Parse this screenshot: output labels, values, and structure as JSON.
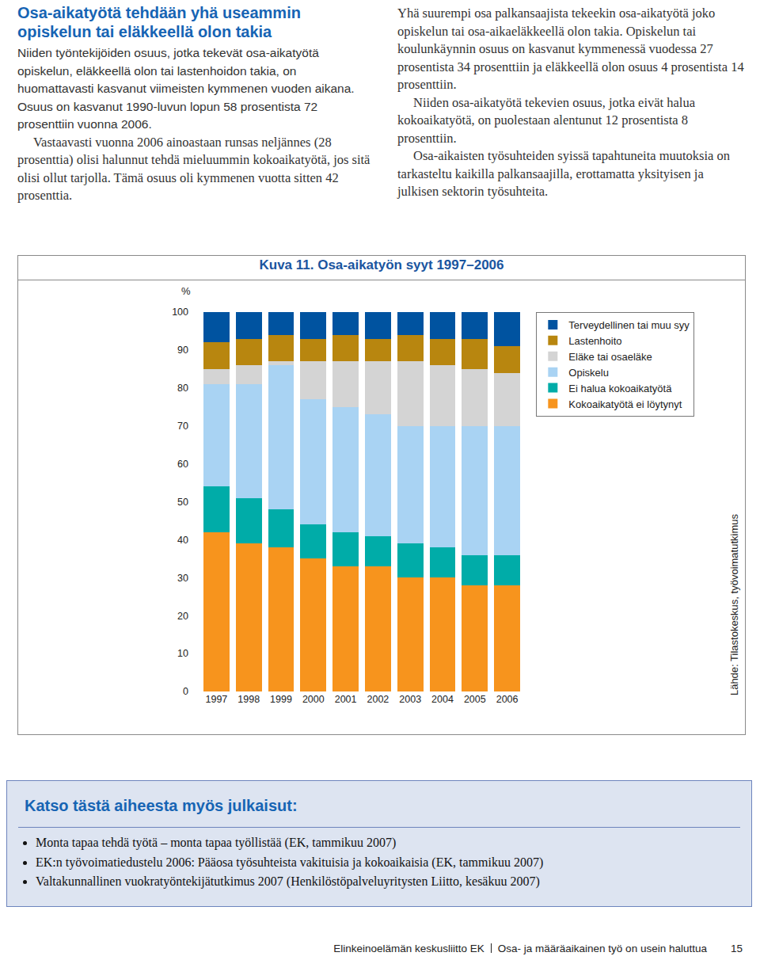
{
  "header": {
    "title": "Osa-aikatyötä tehdään yhä useammin opiskelun tai eläkkeellä olon takia",
    "left": [
      "Niiden työntekijöiden osuus, jotka tekevät osa-aikatyötä opiskelun, eläkkeellä olon tai lastenhoidon takia, on huomattavasti kasvanut viimeisten kymmenen vuoden aikana. Osuus on kasvanut 1990-luvun lopun 58 prosentista 72 prosenttiin vuonna 2006.",
      "Vastaavasti vuonna 2006 ainoastaan runsas neljännes (28 prosenttia) olisi halunnut tehdä mieluummin kokoaikatyötä, jos sitä olisi ollut tarjolla. Tämä osuus oli kymmenen vuotta sitten 42 prosenttia."
    ],
    "right": [
      "Yhä suurempi osa palkansaajista tekeekin osa-aikatyötä joko opiskelun tai osa-aikaeläkkeellä olon takia. Opiskelun tai koulunkäynnin osuus on kasvanut kymmenessä vuodessa 27 prosentista 34 prosenttiin ja eläkkeellä olon osuus 4 prosentista 14 prosenttiin.",
      "Niiden osa-aikatyötä tekevien osuus, jotka eivät halua kokoaikatyötä, on puolestaan alentunut 12 prosentista 8 prosenttiin.",
      "Osa-aikaisten työsuhteiden syissä tapahtuneita muutoksia on tarkasteltu kaikilla palkansaajilla, erottamatta yksityisen ja julkisen sektorin työsuhteita."
    ]
  },
  "chart_data": {
    "type": "bar",
    "stacked": true,
    "title": "Kuva 11. Osa-aikatyön syyt 1997–2006",
    "y_label": "%",
    "annotations": [
      "Lähde: Tilastokeskus, työvoimatutkimus"
    ],
    "categories": [
      "1997",
      "1998",
      "1999",
      "2000",
      "2001",
      "2002",
      "2003",
      "2004",
      "2005",
      "2006"
    ],
    "series": [
      {
        "name": "Kokoaikatyötä ei löytynyt",
        "color": "#f7941d",
        "values": [
          42,
          39,
          38,
          35,
          33,
          33,
          30,
          30,
          28,
          28
        ]
      },
      {
        "name": "Ei halua kokoaikatyötä",
        "color": "#00aca8",
        "values": [
          12,
          12,
          10,
          9,
          9,
          8,
          9,
          8,
          8,
          8
        ]
      },
      {
        "name": "Opiskelu",
        "color": "#a9d3f3",
        "values": [
          27,
          30,
          38,
          33,
          33,
          32,
          31,
          32,
          34,
          34
        ]
      },
      {
        "name": "Eläke tai osaeläke",
        "color": "#d4d4d4",
        "values": [
          4,
          5,
          1,
          10,
          12,
          14,
          17,
          16,
          15,
          14
        ]
      },
      {
        "name": "Lastenhoito",
        "color": "#b8860f",
        "values": [
          7,
          7,
          7,
          6,
          7,
          6,
          7,
          7,
          8,
          7
        ]
      },
      {
        "name": "Terveydellinen tai muu syy",
        "color": "#0053a0",
        "values": [
          8,
          7,
          6,
          7,
          6,
          7,
          6,
          7,
          7,
          9
        ]
      }
    ],
    "ylim": [
      0,
      100
    ],
    "yticks": [
      0,
      10,
      20,
      30,
      40,
      50,
      60,
      70,
      80,
      90,
      100
    ],
    "grid": false,
    "legend": "right"
  },
  "box": {
    "title": "Katso tästä aiheesta myös julkaisut:",
    "items": [
      "Monta tapaa tehdä työtä – monta tapaa työllistää (EK, tammikuu 2007)",
      "EK:n työvoimatiedustelu 2006: Pääosa työsuhteista vakituisia ja kokoaikaisia (EK, tammikuu 2007)",
      "Valtakunnallinen vuokratyöntekijätutkimus 2007 (Henkilöstöpalveluyritysten Liitto, kesäkuu 2007)"
    ]
  },
  "footer": {
    "publisher": "Elinkeinoelämän keskusliitto EK",
    "title": "Osa- ja määräaikainen työ on usein haluttua",
    "page": 15
  }
}
